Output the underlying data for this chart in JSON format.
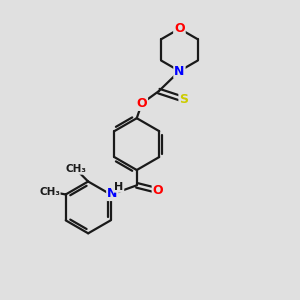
{
  "bg_color": "#e0e0e0",
  "bond_color": "#1a1a1a",
  "bond_width": 1.6,
  "atom_colors": {
    "O": "#ff0000",
    "N": "#0000ff",
    "S": "#cccc00",
    "C": "#1a1a1a",
    "H": "#1a1a1a"
  },
  "font_size": 9,
  "small_font_size": 7.5,
  "fig_size": [
    3.0,
    3.0
  ],
  "dpi": 100,
  "xlim": [
    0,
    10
  ],
  "ylim": [
    0,
    10
  ]
}
